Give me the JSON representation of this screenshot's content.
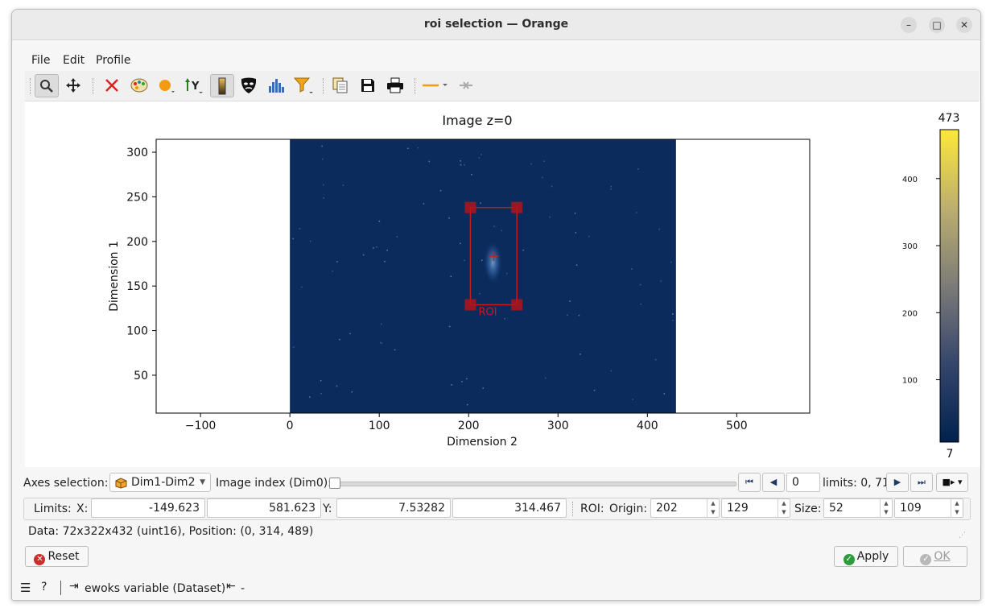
{
  "window": {
    "title": "roi selection — Orange"
  },
  "menu": {
    "items": [
      "File",
      "Edit",
      "Profile"
    ]
  },
  "toolbar": {
    "icons": [
      "zoom-icon",
      "pan-icon",
      "reset-zoom-icon",
      "colormap-icon",
      "curve-style-icon",
      "y-axis-icon",
      "aspect-ratio-icon",
      "mask-icon",
      "histogram-icon",
      "filter-icon",
      "copy-icon",
      "save-icon",
      "print-icon",
      "profile-line-icon",
      "clear-profile-icon"
    ]
  },
  "plot": {
    "title": "Image z=0",
    "xlabel": "Dimension 2",
    "ylabel": "Dimension 1",
    "x_ticks": [
      "−100",
      "0",
      "100",
      "200",
      "300",
      "400",
      "500"
    ],
    "y_ticks": [
      "300",
      "250",
      "200",
      "150",
      "100",
      "50"
    ],
    "roi_label": "ROI",
    "image_color": "#0a2b5b",
    "roi_color": "#cc1a1a"
  },
  "chart_data": {
    "type": "heatmap",
    "title": "Image z=0",
    "xlabel": "Dimension 2",
    "ylabel": "Dimension 1",
    "xlim": [
      -149.623,
      581.623
    ],
    "ylim": [
      7.53282,
      314.467
    ],
    "x_ticks": [
      -100,
      0,
      100,
      200,
      300,
      400,
      500
    ],
    "y_ticks": [
      50,
      100,
      150,
      200,
      250,
      300
    ],
    "image_extent": {
      "x": [
        0,
        432
      ],
      "y": [
        0,
        314
      ]
    },
    "roi": {
      "x": [
        202,
        254
      ],
      "y": [
        129,
        238
      ]
    },
    "colormap": "cividis",
    "colorbar": {
      "min": 7,
      "max": 473,
      "ticks": [
        100,
        200,
        300,
        400
      ]
    }
  },
  "colorbar": {
    "max_label": "473",
    "min_label": "7",
    "ticks": [
      "400",
      "300",
      "200",
      "100"
    ]
  },
  "axes": {
    "label": "Axes selection:",
    "value": "Dim1-Dim2",
    "index_label": "Image index (Dim0):",
    "index_value": "0",
    "limits_text": "limits: 0, 71"
  },
  "limits": {
    "label": "Limits:",
    "x_label": "X:",
    "x_min": "-149.623",
    "x_max": "581.623",
    "y_label": "Y:",
    "y_min": "7.53282",
    "y_max": "314.467",
    "roi_label": "ROI:",
    "origin_label": "Origin:",
    "origin_x": "202",
    "origin_y": "129",
    "size_label": "Size:",
    "size_w": "52",
    "size_h": "109"
  },
  "status": {
    "data_text": "Data: 72x322x432 (uint16), Position: (0, 314, 489)"
  },
  "buttons": {
    "reset": "Reset",
    "apply": "Apply",
    "ok": "OK"
  },
  "footer": {
    "input_text": "ewoks variable (Dataset)",
    "output_text": "-"
  }
}
